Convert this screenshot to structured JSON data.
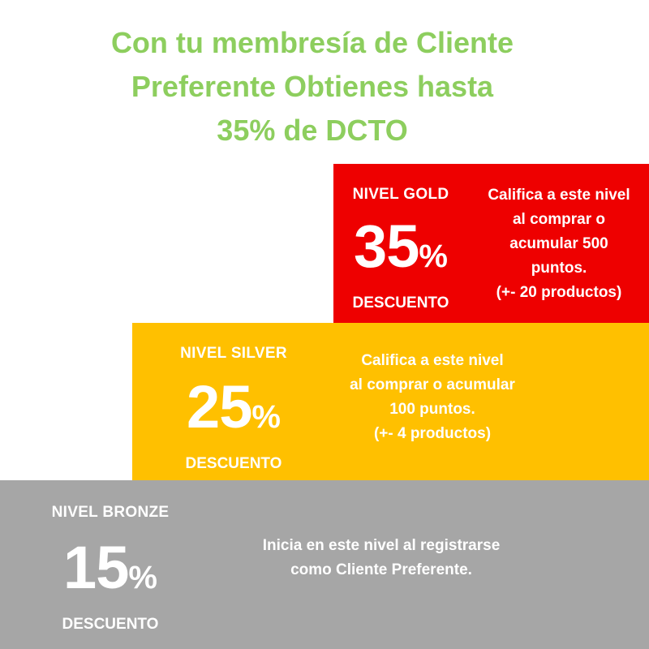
{
  "headline": {
    "lines": [
      "Con tu membresía de Cliente",
      "Preferente Obtienes hasta",
      "35% de DCTO"
    ]
  },
  "colors": {
    "headline": "#8dce5e",
    "gold": "#ee0000",
    "silver": "#ffc000",
    "bronze": "#a6a6a6",
    "text": "#ffffff"
  },
  "tiers": {
    "gold": {
      "name": "NIVEL GOLD",
      "percent_number": "35",
      "percent_sign": "%",
      "discount_label": "DESCUENTO",
      "description_lines": [
        "Califica a este nivel",
        "al comprar o",
        "acumular 500",
        "puntos.",
        "(+- 20 productos)"
      ]
    },
    "silver": {
      "name": "NIVEL SILVER",
      "percent_number": "25",
      "percent_sign": "%",
      "discount_label": "DESCUENTO",
      "description_lines": [
        "Califica a este nivel",
        "al comprar o acumular",
        "100 puntos.",
        "(+- 4 productos)"
      ]
    },
    "bronze": {
      "name": "NIVEL BRONZE",
      "percent_number": "15",
      "percent_sign": "%",
      "discount_label": "DESCUENTO",
      "description_lines": [
        "Inicia en este nivel al registrarse",
        "como Cliente Preferente."
      ]
    }
  }
}
